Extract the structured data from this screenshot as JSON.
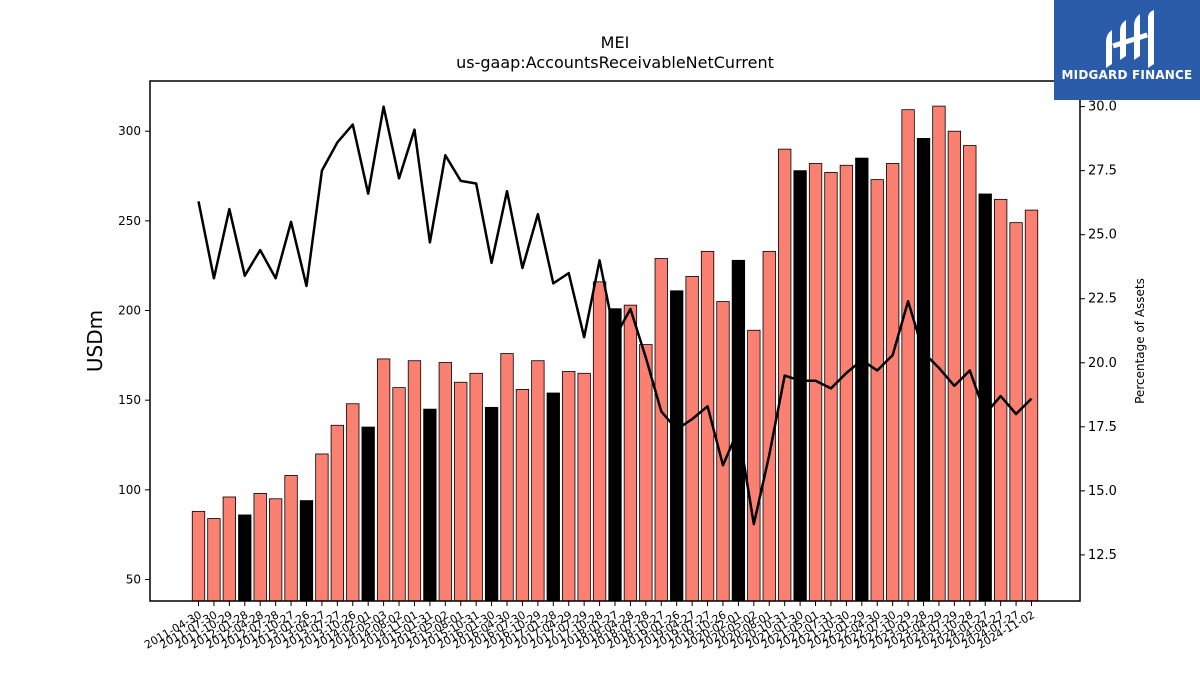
{
  "logo": {
    "text": "MIDGARD FINANCE"
  },
  "colors": {
    "bar": "#fa8072",
    "bar_highlight": "#000000",
    "line": "#000000",
    "logo_bg": "#2a5caa"
  },
  "chart_data": {
    "type": "bar",
    "title": "MEI",
    "subtitle": "us-gaap:AccountsReceivableNetCurrent",
    "ylabel": "USDm",
    "y2label": "Percentage of Assets",
    "ylim": [
      38,
      328
    ],
    "y2lim": [
      10.7,
      31.0
    ],
    "yticks": [
      50,
      100,
      150,
      200,
      250,
      300
    ],
    "y2ticks": [
      12.5,
      15.0,
      17.5,
      20.0,
      22.5,
      25.0,
      27.5,
      30.0
    ],
    "categories": [
      "2011-04-30",
      "2011-07-30",
      "2011-10-29",
      "2012-01-28",
      "2012-04-28",
      "2012-07-28",
      "2012-10-27",
      "2013-01-26",
      "2013-04-27",
      "2013-07-27",
      "2013-10-26",
      "2014-02-01",
      "2014-05-03",
      "2014-08-02",
      "2014-11-01",
      "2015-01-31",
      "2015-05-02",
      "2015-08-01",
      "2015-10-31",
      "2016-01-30",
      "2016-04-30",
      "2016-07-30",
      "2016-10-29",
      "2017-01-28",
      "2017-04-29",
      "2017-07-29",
      "2017-10-28",
      "2018-01-27",
      "2018-04-28",
      "2018-07-28",
      "2018-10-27",
      "2019-01-26",
      "2019-04-27",
      "2019-07-27",
      "2019-10-26",
      "2020-02-01",
      "2020-05-02",
      "2020-08-01",
      "2020-10-31",
      "2021-01-30",
      "2021-05-01",
      "2021-07-31",
      "2021-10-30",
      "2022-01-29",
      "2022-04-30",
      "2022-07-30",
      "2022-10-29",
      "2023-01-28",
      "2023-04-29",
      "2023-07-29",
      "2023-10-28",
      "2024-01-27",
      "2024-04-27",
      "2024-07-27",
      "2024-11-02"
    ],
    "series": [
      {
        "values": [
          88,
          84,
          96,
          86,
          98,
          95,
          108,
          94,
          120,
          136,
          148,
          135,
          173,
          157,
          172,
          145,
          171,
          160,
          165,
          146,
          176,
          156,
          172,
          154,
          166,
          165,
          216,
          201,
          203,
          181,
          229,
          211,
          219,
          233,
          205,
          228,
          189,
          233,
          290,
          278,
          282,
          277,
          281,
          285,
          273,
          282,
          312,
          296,
          314,
          300,
          292,
          265,
          262,
          249,
          256
        ]
      },
      {
        "values": [
          26.3,
          23.3,
          26.0,
          23.4,
          24.4,
          23.3,
          25.5,
          23.0,
          27.5,
          28.6,
          29.3,
          26.6,
          30.0,
          27.2,
          29.1,
          24.7,
          28.1,
          27.1,
          27.0,
          23.9,
          26.7,
          23.7,
          25.8,
          23.1,
          23.5,
          21.0,
          24.0,
          21.0,
          22.1,
          20.2,
          18.1,
          17.4,
          17.8,
          18.3,
          16.0,
          17.4,
          13.7,
          16.4,
          19.5,
          19.3,
          19.3,
          19.0,
          19.6,
          20.1,
          19.7,
          20.3,
          22.4,
          20.4,
          19.8,
          19.1,
          19.7,
          18.0,
          18.7,
          18.0,
          18.6
        ]
      }
    ],
    "highlighted_indices": [
      3,
      7,
      11,
      15,
      19,
      23,
      27,
      31,
      35,
      39,
      43,
      47,
      51
    ],
    "grid": false,
    "legend": "none"
  }
}
